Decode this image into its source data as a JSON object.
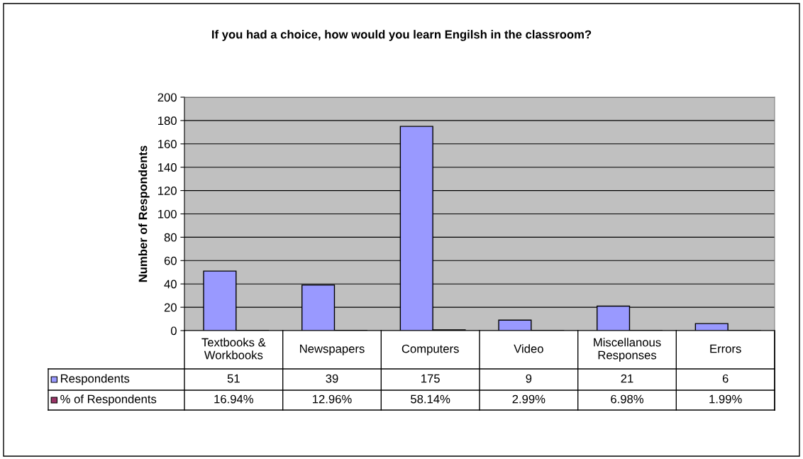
{
  "chart_data": {
    "type": "bar",
    "title": "If you had a choice, how would you learn Engilsh in the classroom?",
    "ylabel": "Number of Respondents",
    "categories": [
      "Textbooks & Workbooks",
      "Newspapers",
      "Computers",
      "Video",
      "Miscellanous Responses",
      "Errors"
    ],
    "series": [
      {
        "name": "Respondents",
        "color": "#9999ff",
        "values": [
          51,
          39,
          175,
          9,
          21,
          6
        ],
        "value_labels": [
          "51",
          "39",
          "175",
          "9",
          "21",
          "6"
        ]
      },
      {
        "name": "% of Respondents",
        "color": "#993366",
        "values": [
          0.1694,
          0.1296,
          0.5814,
          0.0299,
          0.0698,
          0.0199
        ],
        "value_labels": [
          "16.94%",
          "12.96%",
          "58.14%",
          "2.99%",
          "6.98%",
          "1.99%"
        ]
      }
    ],
    "ylim": [
      0,
      200
    ],
    "yticks": [
      0,
      20,
      40,
      60,
      80,
      100,
      120,
      140,
      160,
      180,
      200
    ],
    "grid": "y",
    "legend": "bottom left"
  }
}
